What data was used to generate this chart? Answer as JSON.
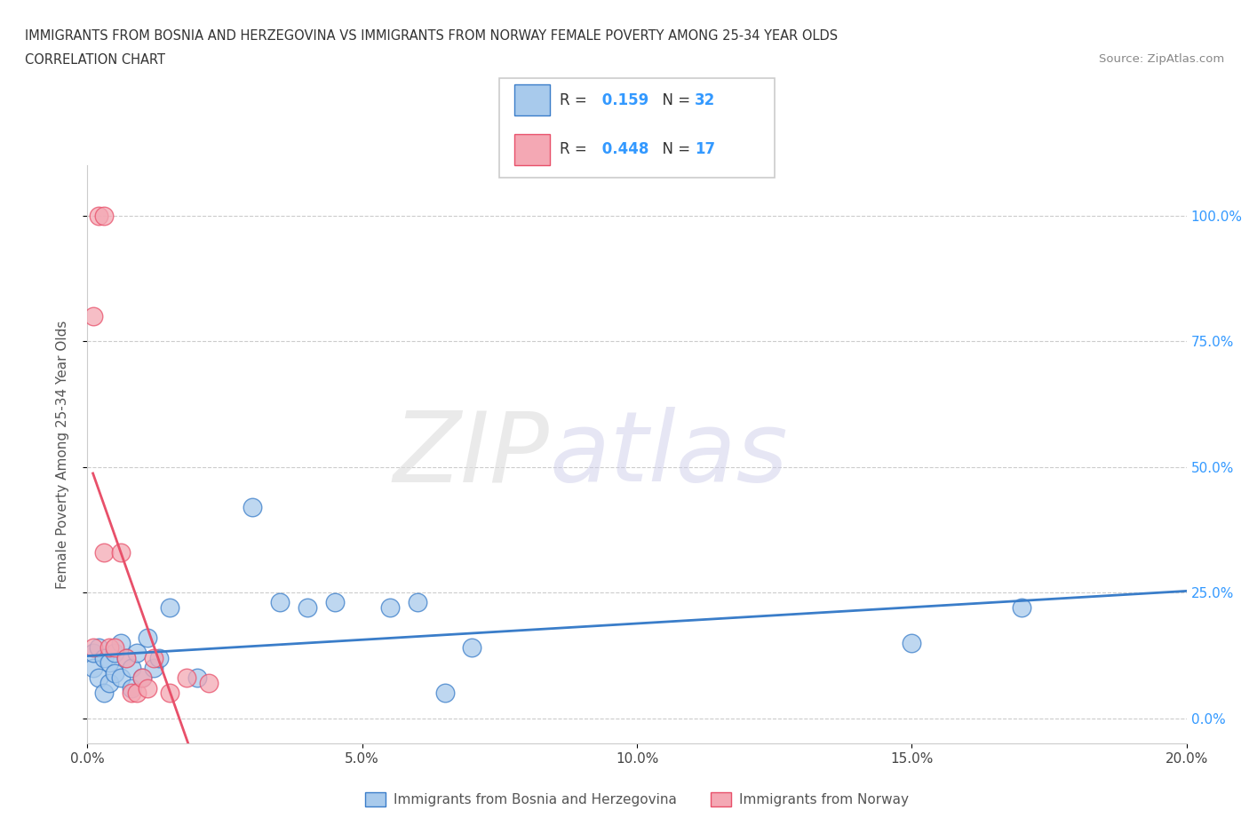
{
  "title_line1": "IMMIGRANTS FROM BOSNIA AND HERZEGOVINA VS IMMIGRANTS FROM NORWAY FEMALE POVERTY AMONG 25-34 YEAR OLDS",
  "title_line2": "CORRELATION CHART",
  "source_text": "Source: ZipAtlas.com",
  "ylabel": "Female Poverty Among 25-34 Year Olds",
  "xlim": [
    0.0,
    0.2
  ],
  "ylim": [
    -0.05,
    1.1
  ],
  "yticks": [
    0.0,
    0.25,
    0.5,
    0.75,
    1.0
  ],
  "ytick_labels": [
    "0.0%",
    "25.0%",
    "50.0%",
    "75.0%",
    "100.0%"
  ],
  "xticks": [
    0.0,
    0.05,
    0.1,
    0.15,
    0.2
  ],
  "xtick_labels": [
    "0.0%",
    "5.0%",
    "10.0%",
    "15.0%",
    "20.0%"
  ],
  "color_bosnia": "#A8CAEC",
  "color_norway": "#F4A8B4",
  "line_color_bosnia": "#3A7DC9",
  "line_color_norway": "#E8506A",
  "r_bosnia": 0.159,
  "n_bosnia": 32,
  "r_norway": 0.448,
  "n_norway": 17,
  "bosnia_x": [
    0.001,
    0.001,
    0.002,
    0.002,
    0.003,
    0.003,
    0.004,
    0.004,
    0.005,
    0.005,
    0.006,
    0.006,
    0.007,
    0.008,
    0.008,
    0.009,
    0.01,
    0.011,
    0.012,
    0.013,
    0.015,
    0.02,
    0.03,
    0.035,
    0.04,
    0.045,
    0.055,
    0.06,
    0.065,
    0.07,
    0.15,
    0.17
  ],
  "bosnia_y": [
    0.1,
    0.13,
    0.08,
    0.14,
    0.12,
    0.05,
    0.11,
    0.07,
    0.13,
    0.09,
    0.15,
    0.08,
    0.12,
    0.06,
    0.1,
    0.13,
    0.08,
    0.16,
    0.1,
    0.12,
    0.22,
    0.08,
    0.42,
    0.23,
    0.22,
    0.23,
    0.22,
    0.23,
    0.05,
    0.14,
    0.15,
    0.22
  ],
  "norway_x": [
    0.001,
    0.001,
    0.002,
    0.003,
    0.003,
    0.004,
    0.005,
    0.006,
    0.007,
    0.008,
    0.009,
    0.01,
    0.011,
    0.012,
    0.015,
    0.018,
    0.022
  ],
  "norway_y": [
    0.8,
    0.14,
    1.0,
    1.0,
    0.33,
    0.14,
    0.14,
    0.33,
    0.12,
    0.05,
    0.05,
    0.08,
    0.06,
    0.12,
    0.05,
    0.08,
    0.07
  ]
}
